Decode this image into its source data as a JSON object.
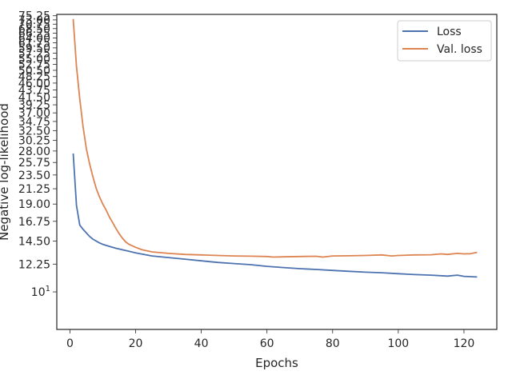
{
  "chart_data": {
    "type": "line",
    "xlabel": "Epochs",
    "ylabel": "Negative log-likelihood",
    "xlim": [
      -4,
      130
    ],
    "ylim": [
      7.6,
      76.0
    ],
    "yscale": "log",
    "grid": false,
    "legend_position": "top-right",
    "xticks": [
      0,
      20,
      40,
      60,
      80,
      100,
      120
    ],
    "xtick_labels": [
      "0",
      "20",
      "40",
      "60",
      "80",
      "100",
      "120"
    ],
    "yticks": [
      10,
      12.25,
      14.5,
      16.75,
      19.0,
      21.25,
      23.5,
      25.75,
      28.0,
      30.25,
      32.5,
      34.75,
      37.0,
      39.25,
      41.5,
      43.75,
      46.0,
      48.25,
      50.5,
      52.75,
      55.0,
      57.25,
      59.5,
      61.75,
      64.0,
      66.25,
      68.5,
      70.75,
      73.0,
      75.25
    ],
    "ytick_labels": [
      "10¹",
      "12.25",
      "14.50",
      "16.75",
      "19.00",
      "21.25",
      "23.50",
      "25.75",
      "28.00",
      "30.25",
      "32.50",
      "34.75",
      "37.00",
      "39.25",
      "41.50",
      "43.75",
      "46.00",
      "48.25",
      "50.50",
      "52.75",
      "55.00",
      "57.25",
      "59.50",
      "61.75",
      "64.00",
      "66.25",
      "68.50",
      "70.75",
      "73.00",
      "75.25"
    ],
    "series": [
      {
        "name": "Loss",
        "color": "#4c72b0",
        "x": [
          1,
          2,
          3,
          4,
          5,
          6,
          7,
          8,
          9,
          10,
          12,
          14,
          16,
          18,
          20,
          25,
          30,
          35,
          40,
          45,
          50,
          55,
          60,
          65,
          70,
          75,
          80,
          85,
          90,
          95,
          100,
          105,
          110,
          115,
          118,
          120,
          124
        ],
        "y": [
          27.5,
          18.8,
          16.3,
          15.8,
          15.4,
          15.0,
          14.7,
          14.5,
          14.3,
          14.15,
          13.95,
          13.75,
          13.6,
          13.45,
          13.3,
          13.0,
          12.85,
          12.7,
          12.55,
          12.4,
          12.3,
          12.2,
          12.05,
          11.95,
          11.85,
          11.78,
          11.7,
          11.62,
          11.55,
          11.5,
          11.42,
          11.35,
          11.3,
          11.22,
          11.3,
          11.2,
          11.15
        ]
      },
      {
        "name": "Val. loss",
        "color": "#dd8452",
        "x": [
          1,
          2,
          3,
          4,
          5,
          6,
          7,
          8,
          9,
          10,
          11,
          12,
          13,
          14,
          15,
          16,
          17,
          18,
          20,
          22,
          25,
          30,
          35,
          40,
          45,
          50,
          55,
          60,
          62,
          65,
          70,
          75,
          77,
          80,
          85,
          90,
          95,
          98,
          100,
          105,
          110,
          113,
          115,
          118,
          120,
          122,
          124
        ],
        "y": [
          73.5,
          52.0,
          41.0,
          33.5,
          28.5,
          25.5,
          23.2,
          21.3,
          20.0,
          19.0,
          18.2,
          17.3,
          16.6,
          15.9,
          15.3,
          14.8,
          14.4,
          14.15,
          13.85,
          13.6,
          13.4,
          13.25,
          13.15,
          13.1,
          13.05,
          13.0,
          12.98,
          12.95,
          12.9,
          12.92,
          12.95,
          12.97,
          12.9,
          13.0,
          13.02,
          13.05,
          13.1,
          13.0,
          13.05,
          13.1,
          13.12,
          13.2,
          13.15,
          13.25,
          13.2,
          13.22,
          13.35
        ]
      }
    ]
  }
}
